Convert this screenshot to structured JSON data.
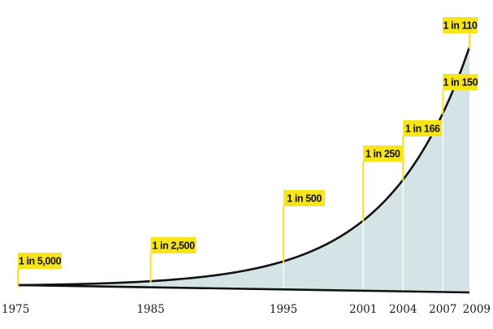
{
  "chart_data": {
    "type": "area",
    "title": "",
    "xlabel": "",
    "ylabel": "",
    "x": [
      1975,
      1985,
      1995,
      2001,
      2004,
      2007,
      2009
    ],
    "tick_labels": [
      "1975",
      "1985",
      "1995",
      "2001",
      "2004",
      "2007",
      "2009"
    ],
    "annotations": [
      "1 in 5,000",
      "1 in 2,500",
      "1 in 500",
      "1 in 250",
      "1 in 166",
      "1 in 150",
      "1 in 110"
    ],
    "y_rate": [
      0.0002,
      0.0004,
      0.002,
      0.004,
      0.006024,
      0.006667,
      0.009091
    ],
    "xlim": [
      1975,
      2009
    ],
    "colors": {
      "area_fill": "#d4e4e6",
      "curve": "#111111",
      "tag_fill": "#f7e51a",
      "gridline": "#ffffff"
    }
  }
}
